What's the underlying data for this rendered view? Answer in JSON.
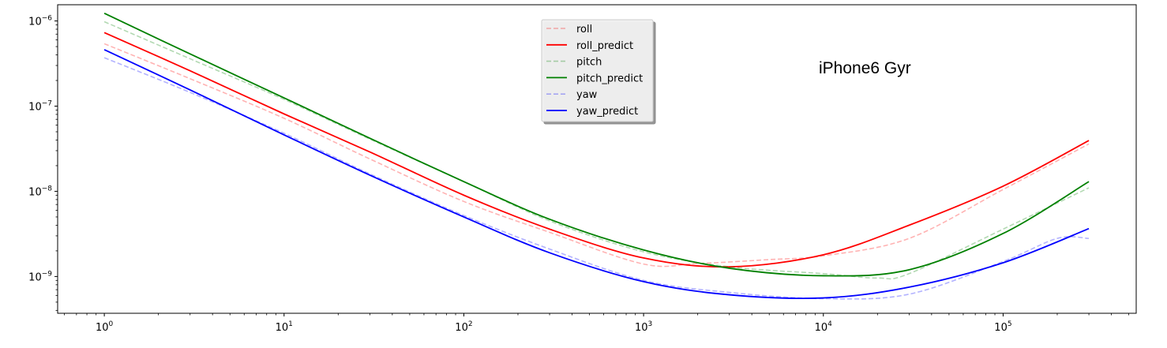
{
  "chart_data": {
    "type": "line",
    "title": "",
    "xlabel": "",
    "ylabel": "",
    "xscale": "log",
    "yscale": "log",
    "xlim": [
      0.55,
      550000
    ],
    "ylim": [
      3.7e-10,
      1.55e-06
    ],
    "grid": false,
    "legend_position": "top-center",
    "annotation": "iPhone6 Gyr",
    "x_ticks": [
      {
        "value": 1,
        "base": "10",
        "exp": "0"
      },
      {
        "value": 10,
        "base": "10",
        "exp": "1"
      },
      {
        "value": 100,
        "base": "10",
        "exp": "2"
      },
      {
        "value": 1000,
        "base": "10",
        "exp": "3"
      },
      {
        "value": 10000,
        "base": "10",
        "exp": "4"
      },
      {
        "value": 100000,
        "base": "10",
        "exp": "5"
      }
    ],
    "y_ticks": [
      {
        "value": 1e-09,
        "base": "10",
        "exp": "−9"
      },
      {
        "value": 1e-08,
        "base": "10",
        "exp": "−8"
      },
      {
        "value": 1e-07,
        "base": "10",
        "exp": "−7"
      },
      {
        "value": 1e-06,
        "base": "10",
        "exp": "−6"
      }
    ],
    "series": [
      {
        "name": "roll",
        "color": "#ff0000",
        "style": "dashed",
        "opacity": 0.3,
        "points": [
          [
            1,
            5.4e-07
          ],
          [
            3,
            2.1e-07
          ],
          [
            10,
            7.2e-08
          ],
          [
            30,
            2.4e-08
          ],
          [
            100,
            7.6e-09
          ],
          [
            300,
            3.3e-09
          ],
          [
            1000,
            1.4e-09
          ],
          [
            2000,
            1.42e-09
          ],
          [
            5000,
            1.58e-09
          ],
          [
            10000,
            1.75e-09
          ],
          [
            30000,
            2.8e-09
          ],
          [
            100000,
            1.05e-08
          ],
          [
            300000,
            3.6e-08
          ]
        ]
      },
      {
        "name": "roll_predict",
        "color": "#ff0000",
        "style": "solid",
        "opacity": 1,
        "points": [
          [
            1,
            7.3e-07
          ],
          [
            3,
            2.6e-07
          ],
          [
            10,
            8.1e-08
          ],
          [
            30,
            2.9e-08
          ],
          [
            100,
            9e-09
          ],
          [
            300,
            3.6e-09
          ],
          [
            1000,
            1.65e-09
          ],
          [
            3000,
            1.3e-09
          ],
          [
            10000,
            1.8e-09
          ],
          [
            30000,
            4e-09
          ],
          [
            100000,
            1.15e-08
          ],
          [
            300000,
            3.95e-08
          ]
        ]
      },
      {
        "name": "pitch",
        "color": "#008000",
        "style": "dashed",
        "opacity": 0.3,
        "points": [
          [
            1,
            9.8e-07
          ],
          [
            3,
            3.6e-07
          ],
          [
            10,
            1.2e-07
          ],
          [
            30,
            4.1e-08
          ],
          [
            100,
            1.3e-08
          ],
          [
            300,
            4.5e-09
          ],
          [
            1000,
            1.95e-09
          ],
          [
            3000,
            1.3e-09
          ],
          [
            10000,
            1.08e-09
          ],
          [
            20000,
            9.6e-10
          ],
          [
            30000,
            1.08e-09
          ],
          [
            100000,
            3.6e-09
          ],
          [
            300000,
            1.1e-08
          ]
        ]
      },
      {
        "name": "pitch_predict",
        "color": "#008000",
        "style": "solid",
        "opacity": 1,
        "points": [
          [
            1,
            1.23e-06
          ],
          [
            3,
            4.1e-07
          ],
          [
            10,
            1.25e-07
          ],
          [
            30,
            4.2e-08
          ],
          [
            100,
            1.3e-08
          ],
          [
            300,
            4.7e-09
          ],
          [
            1000,
            2.05e-09
          ],
          [
            3000,
            1.25e-09
          ],
          [
            10000,
            1.02e-09
          ],
          [
            30000,
            1.2e-09
          ],
          [
            100000,
            3.2e-09
          ],
          [
            300000,
            1.3e-08
          ]
        ]
      },
      {
        "name": "yaw",
        "color": "#0000ff",
        "style": "dashed",
        "opacity": 0.3,
        "points": [
          [
            1,
            3.7e-07
          ],
          [
            3,
            1.45e-07
          ],
          [
            10,
            4.8e-08
          ],
          [
            30,
            1.6e-08
          ],
          [
            100,
            5.2e-09
          ],
          [
            300,
            2.1e-09
          ],
          [
            1000,
            9e-10
          ],
          [
            3000,
            6.5e-10
          ],
          [
            10000,
            5.5e-10
          ],
          [
            30000,
            6.2e-10
          ],
          [
            100000,
            1.5e-09
          ],
          [
            200000,
            2.8e-09
          ],
          [
            300000,
            2.8e-09
          ]
        ]
      },
      {
        "name": "yaw_predict",
        "color": "#0000ff",
        "style": "solid",
        "opacity": 1,
        "points": [
          [
            1,
            4.6e-07
          ],
          [
            3,
            1.55e-07
          ],
          [
            10,
            4.6e-08
          ],
          [
            30,
            1.55e-08
          ],
          [
            100,
            5e-09
          ],
          [
            300,
            1.9e-09
          ],
          [
            1000,
            8.7e-10
          ],
          [
            3000,
            6.1e-10
          ],
          [
            10000,
            5.6e-10
          ],
          [
            30000,
            7.5e-10
          ],
          [
            100000,
            1.45e-09
          ],
          [
            300000,
            3.65e-09
          ]
        ]
      }
    ]
  }
}
